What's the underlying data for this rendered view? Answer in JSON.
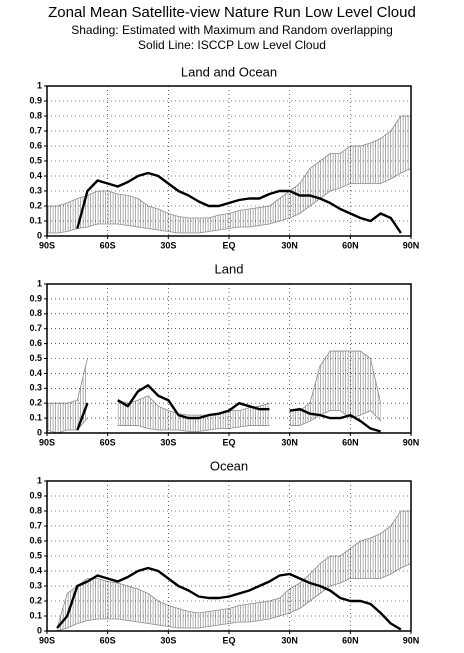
{
  "header": {
    "title": "Zonal Mean Satellite-view Nature Run  Low Level Cloud",
    "subtitles": [
      "Shading: Estimated with Maximum and Random overlapping",
      "Solid Line: ISCCP Low Level Cloud"
    ]
  },
  "chart_data": [
    {
      "type": "band-line",
      "title": "Land and Ocean",
      "x": [
        -90,
        -85,
        -80,
        -75,
        -70,
        -65,
        -60,
        -55,
        -50,
        -45,
        -40,
        -35,
        -30,
        -25,
        -20,
        -15,
        -10,
        -5,
        0,
        5,
        10,
        15,
        20,
        25,
        30,
        35,
        40,
        45,
        50,
        55,
        60,
        65,
        70,
        75,
        80,
        85,
        90
      ],
      "band_upper": [
        0.2,
        0.2,
        0.22,
        0.25,
        0.27,
        0.3,
        0.3,
        0.28,
        0.27,
        0.25,
        0.2,
        0.18,
        0.15,
        0.13,
        0.12,
        0.12,
        0.12,
        0.14,
        0.15,
        0.17,
        0.18,
        0.19,
        0.2,
        0.25,
        0.3,
        0.35,
        0.45,
        0.5,
        0.55,
        0.55,
        0.6,
        0.6,
        0.62,
        0.65,
        0.7,
        0.8,
        0.8
      ],
      "band_lower": [
        0.02,
        0.02,
        0.03,
        0.05,
        0.06,
        0.08,
        0.08,
        0.08,
        0.07,
        0.06,
        0.05,
        0.04,
        0.03,
        0.02,
        0.02,
        0.02,
        0.03,
        0.04,
        0.05,
        0.06,
        0.06,
        0.07,
        0.08,
        0.1,
        0.12,
        0.15,
        0.2,
        0.25,
        0.3,
        0.32,
        0.35,
        0.35,
        0.35,
        0.35,
        0.38,
        0.42,
        0.45
      ],
      "line": [
        null,
        null,
        null,
        0.05,
        0.3,
        0.37,
        0.35,
        0.33,
        0.36,
        0.4,
        0.42,
        0.4,
        0.35,
        0.3,
        0.27,
        0.23,
        0.2,
        0.2,
        0.22,
        0.24,
        0.25,
        0.25,
        0.28,
        0.3,
        0.3,
        0.27,
        0.27,
        0.25,
        0.22,
        0.18,
        0.15,
        0.12,
        0.1,
        0.15,
        0.12,
        0.02,
        null
      ],
      "line_color": "#000000",
      "band_color": "#8c8c8c",
      "xlim": [
        -90,
        90
      ],
      "ylim": [
        0,
        1
      ],
      "xticks": [
        {
          "value": -90,
          "label": "90S"
        },
        {
          "value": -60,
          "label": "60S"
        },
        {
          "value": -30,
          "label": "30S"
        },
        {
          "value": 0,
          "label": "EQ"
        },
        {
          "value": 30,
          "label": "30N"
        },
        {
          "value": 60,
          "label": "60N"
        },
        {
          "value": 90,
          "label": "90N"
        }
      ],
      "yticks": [
        0,
        0.1,
        0.2,
        0.3,
        0.4,
        0.5,
        0.6,
        0.7,
        0.8,
        0.9,
        1
      ],
      "grid": true
    },
    {
      "type": "band-line",
      "title": "Land",
      "x": [
        -90,
        -85,
        -80,
        -75,
        -70,
        -65,
        -60,
        -55,
        -50,
        -45,
        -40,
        -35,
        -30,
        -25,
        -20,
        -15,
        -10,
        -5,
        0,
        5,
        10,
        15,
        20,
        25,
        30,
        35,
        40,
        45,
        50,
        55,
        60,
        65,
        70,
        75,
        80,
        85,
        90
      ],
      "band_upper": [
        0.2,
        0.2,
        0.2,
        0.22,
        0.5,
        null,
        null,
        0.22,
        0.2,
        0.22,
        0.25,
        0.18,
        0.15,
        0.13,
        0.12,
        0.12,
        0.12,
        0.13,
        0.15,
        0.15,
        0.17,
        0.18,
        0.2,
        null,
        0.15,
        0.15,
        0.2,
        0.45,
        0.55,
        0.55,
        0.55,
        0.55,
        0.5,
        0.2,
        null,
        null,
        null
      ],
      "band_lower": [
        0.02,
        0,
        0.02,
        0.02,
        0.1,
        null,
        null,
        0.05,
        0.05,
        0.05,
        0.03,
        0.02,
        0.02,
        0.02,
        0.01,
        0.01,
        0.02,
        0.03,
        0.03,
        0.04,
        0.05,
        0.05,
        0.05,
        null,
        0.05,
        0.05,
        0.08,
        0.12,
        0.15,
        0.15,
        0.1,
        0.12,
        0.15,
        0.08,
        null,
        null,
        null
      ],
      "line": [
        null,
        null,
        null,
        0.02,
        0.2,
        null,
        null,
        0.22,
        0.18,
        0.28,
        0.32,
        0.25,
        0.22,
        0.12,
        0.1,
        0.1,
        0.12,
        0.13,
        0.15,
        0.2,
        0.18,
        0.16,
        0.16,
        null,
        0.15,
        0.16,
        0.13,
        0.12,
        0.1,
        0.1,
        0.12,
        0.08,
        0.03,
        0.01,
        null,
        null,
        null
      ],
      "line_color": "#000000",
      "band_color": "#8c8c8c",
      "xlim": [
        -90,
        90
      ],
      "ylim": [
        0,
        1
      ],
      "xticks": [
        {
          "value": -90,
          "label": "90S"
        },
        {
          "value": -60,
          "label": "60S"
        },
        {
          "value": -30,
          "label": "30S"
        },
        {
          "value": 0,
          "label": "EQ"
        },
        {
          "value": 30,
          "label": "30N"
        },
        {
          "value": 60,
          "label": "60N"
        },
        {
          "value": 90,
          "label": "90N"
        }
      ],
      "yticks": [
        0,
        0.1,
        0.2,
        0.3,
        0.4,
        0.5,
        0.6,
        0.7,
        0.8,
        0.9,
        1
      ],
      "grid": true
    },
    {
      "type": "band-line",
      "title": "Ocean",
      "x": [
        -90,
        -85,
        -80,
        -75,
        -70,
        -65,
        -60,
        -55,
        -50,
        -45,
        -40,
        -35,
        -30,
        -25,
        -20,
        -15,
        -10,
        -5,
        0,
        5,
        10,
        15,
        20,
        25,
        30,
        35,
        40,
        45,
        50,
        55,
        60,
        65,
        70,
        75,
        80,
        85,
        90
      ],
      "band_upper": [
        null,
        0.02,
        0.25,
        0.3,
        0.35,
        0.35,
        0.33,
        0.32,
        0.3,
        0.28,
        0.25,
        0.2,
        0.17,
        0.15,
        0.13,
        0.12,
        0.13,
        0.14,
        0.15,
        0.17,
        0.18,
        0.19,
        0.2,
        0.22,
        0.28,
        0.32,
        0.38,
        0.45,
        0.5,
        0.5,
        0.55,
        0.6,
        0.62,
        0.65,
        0.7,
        0.8,
        0.8
      ],
      "band_lower": [
        null,
        0,
        0.02,
        0.05,
        0.07,
        0.08,
        0.08,
        0.08,
        0.07,
        0.06,
        0.05,
        0.04,
        0.03,
        0.02,
        0.02,
        0.02,
        0.03,
        0.04,
        0.05,
        0.06,
        0.06,
        0.07,
        0.08,
        0.1,
        0.12,
        0.15,
        0.2,
        0.25,
        0.3,
        0.32,
        0.35,
        0.35,
        0.35,
        0.35,
        0.38,
        0.42,
        0.45
      ],
      "line": [
        null,
        0.02,
        0.1,
        0.3,
        0.33,
        0.37,
        0.35,
        0.33,
        0.36,
        0.4,
        0.42,
        0.4,
        0.35,
        0.3,
        0.27,
        0.23,
        0.22,
        0.22,
        0.23,
        0.25,
        0.27,
        0.3,
        0.33,
        0.37,
        0.38,
        0.35,
        0.32,
        0.3,
        0.27,
        0.22,
        0.2,
        0.2,
        0.18,
        0.12,
        0.05,
        0.01,
        null
      ],
      "line_color": "#000000",
      "band_color": "#8c8c8c",
      "xlim": [
        -90,
        90
      ],
      "ylim": [
        0,
        1
      ],
      "xticks": [
        {
          "value": -90,
          "label": "90S"
        },
        {
          "value": -60,
          "label": "60S"
        },
        {
          "value": -30,
          "label": "30S"
        },
        {
          "value": 0,
          "label": "EQ"
        },
        {
          "value": 30,
          "label": "30N"
        },
        {
          "value": 60,
          "label": "60N"
        },
        {
          "value": 90,
          "label": "90N"
        }
      ],
      "yticks": [
        0,
        0.1,
        0.2,
        0.3,
        0.4,
        0.5,
        0.6,
        0.7,
        0.8,
        0.9,
        1
      ],
      "grid": true
    }
  ]
}
